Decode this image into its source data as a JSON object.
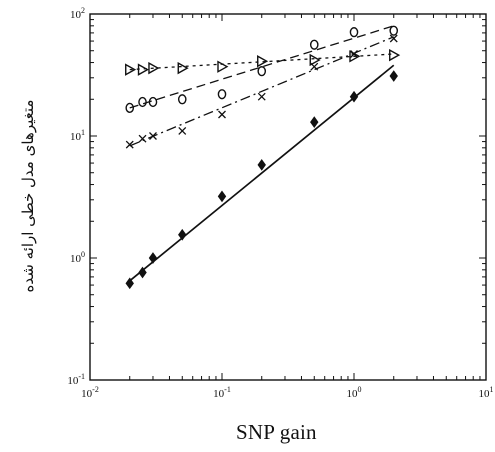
{
  "chart_data": {
    "type": "scatter",
    "title": "",
    "xlabel": "SNP gain",
    "ylabel": "متغیرهای مدل خطی ارائه شده",
    "xscale": "log",
    "yscale": "log",
    "xlim": [
      0.01,
      10
    ],
    "ylim": [
      0.1,
      100
    ],
    "xticks": [
      0.01,
      0.1,
      1,
      10
    ],
    "yticks": [
      0.1,
      1,
      10,
      100
    ],
    "xtick_labels": [
      {
        "base": "10",
        "exp": "-2"
      },
      {
        "base": "10",
        "exp": "-1"
      },
      {
        "base": "10",
        "exp": "0"
      },
      {
        "base": "10",
        "exp": "1"
      }
    ],
    "ytick_labels": [
      {
        "base": "10",
        "exp": "-1"
      },
      {
        "base": "10",
        "exp": "0"
      },
      {
        "base": "10",
        "exp": "1"
      },
      {
        "base": "10",
        "exp": "2"
      }
    ],
    "grid": false,
    "legend": "none",
    "series": [
      {
        "marker": "triangle-right",
        "line_style": "dotted",
        "color": "#111111",
        "x": [
          0.02,
          0.025,
          0.03,
          0.05,
          0.1,
          0.2,
          0.5,
          1,
          2
        ],
        "y": [
          35,
          35,
          36,
          36,
          37,
          41,
          42,
          45,
          46
        ],
        "fit": [
          [
            0.02,
            35
          ],
          [
            2,
            47
          ]
        ]
      },
      {
        "marker": "circle",
        "line_style": "dashed",
        "color": "#111111",
        "x": [
          0.02,
          0.025,
          0.03,
          0.05,
          0.1,
          0.2,
          0.5,
          1,
          2
        ],
        "y": [
          17,
          19,
          19,
          20,
          22,
          34,
          56,
          71,
          73
        ],
        "fit": [
          [
            0.02,
            17
          ],
          [
            2,
            80
          ]
        ]
      },
      {
        "marker": "x",
        "line_style": "dashdot",
        "color": "#111111",
        "x": [
          0.02,
          0.025,
          0.03,
          0.05,
          0.1,
          0.2,
          0.5,
          1,
          2
        ],
        "y": [
          8.5,
          9.5,
          10,
          11,
          15,
          21,
          37,
          47,
          63
        ],
        "fit": [
          [
            0.02,
            8.3
          ],
          [
            2,
            65
          ]
        ]
      },
      {
        "marker": "diamond",
        "line_style": "solid",
        "color": "#111111",
        "x": [
          0.02,
          0.025,
          0.03,
          0.05,
          0.1,
          0.2,
          0.5,
          1,
          2
        ],
        "y": [
          0.62,
          0.76,
          1.0,
          1.55,
          3.2,
          5.8,
          13,
          21,
          31
        ],
        "fit": [
          [
            0.02,
            0.65
          ],
          [
            2,
            38
          ]
        ]
      }
    ]
  }
}
